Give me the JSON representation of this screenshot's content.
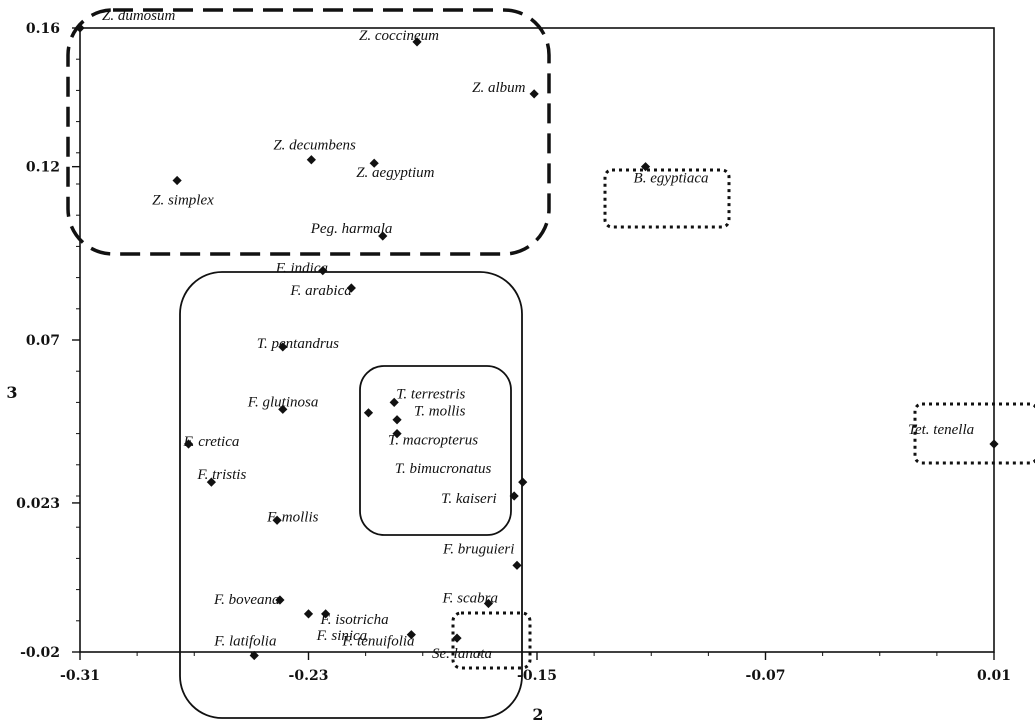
{
  "chart_data": {
    "type": "scatter",
    "xlabel": "2",
    "ylabel": "3",
    "xlim": [
      -0.31,
      0.01
    ],
    "ylim": [
      -0.02,
      0.16
    ],
    "xticks": [
      -0.31,
      -0.23,
      -0.15,
      -0.07,
      0.01
    ],
    "xtick_labels": [
      "-0.31",
      "-0.23",
      "-0.15",
      "-0.07",
      "0.01"
    ],
    "yticks": [
      -0.02,
      0.023,
      0.07,
      0.12,
      0.16
    ],
    "ytick_labels": [
      "-0.02",
      "0.023",
      "0.07",
      "0.12",
      "0.16"
    ],
    "grid": false,
    "points": [
      {
        "label": "Z. dumosum",
        "x": -0.31,
        "y": 0.16
      },
      {
        "label": "Z. coccineum",
        "x": -0.192,
        "y": 0.156
      },
      {
        "label": "Z. album",
        "x": -0.151,
        "y": 0.141
      },
      {
        "label": "Z. decumbens",
        "x": -0.229,
        "y": 0.122
      },
      {
        "label": "Z. aegyptium",
        "x": -0.207,
        "y": 0.121
      },
      {
        "label": "Z. simplex",
        "x": -0.276,
        "y": 0.116
      },
      {
        "label": "B. egyptiaca",
        "x": -0.112,
        "y": 0.12
      },
      {
        "label": "Peg. harmala",
        "x": -0.204,
        "y": 0.1
      },
      {
        "label": "F. indica",
        "x": -0.225,
        "y": 0.09
      },
      {
        "label": "F. arabica",
        "x": -0.215,
        "y": 0.085
      },
      {
        "label": "T. pentandrus",
        "x": -0.239,
        "y": 0.068
      },
      {
        "label": "T. terrestris",
        "x": -0.2,
        "y": 0.052
      },
      {
        "label": "T. mollis",
        "x": -0.199,
        "y": 0.047
      },
      {
        "label": "",
        "x": -0.209,
        "y": 0.049
      },
      {
        "label": "F. glutinosa",
        "x": -0.239,
        "y": 0.05
      },
      {
        "label": "T. macropterus",
        "x": -0.199,
        "y": 0.043
      },
      {
        "label": "Tet. tenella",
        "x": 0.01,
        "y": 0.04
      },
      {
        "label": "F. cretica",
        "x": -0.272,
        "y": 0.04
      },
      {
        "label": "T. bimucronatus",
        "x": -0.155,
        "y": 0.029
      },
      {
        "label": "F. tristis",
        "x": -0.264,
        "y": 0.029
      },
      {
        "label": "T. kaiseri",
        "x": -0.158,
        "y": 0.025
      },
      {
        "label": "F. mollis",
        "x": -0.241,
        "y": 0.018
      },
      {
        "label": "F. bruguieri",
        "x": -0.157,
        "y": 0.005
      },
      {
        "label": "F. scabra",
        "x": -0.167,
        "y": -0.006
      },
      {
        "label": "F. boveana",
        "x": -0.24,
        "y": -0.005
      },
      {
        "label": "F. isotricha",
        "x": -0.23,
        "y": -0.009
      },
      {
        "label": "F. sinica",
        "x": -0.224,
        "y": -0.009
      },
      {
        "label": "F. tenuifolia",
        "x": -0.194,
        "y": -0.015
      },
      {
        "label": "Se. lanata",
        "x": -0.178,
        "y": -0.016
      },
      {
        "label": "F. latifolia",
        "x": -0.249,
        "y": -0.021
      }
    ]
  }
}
